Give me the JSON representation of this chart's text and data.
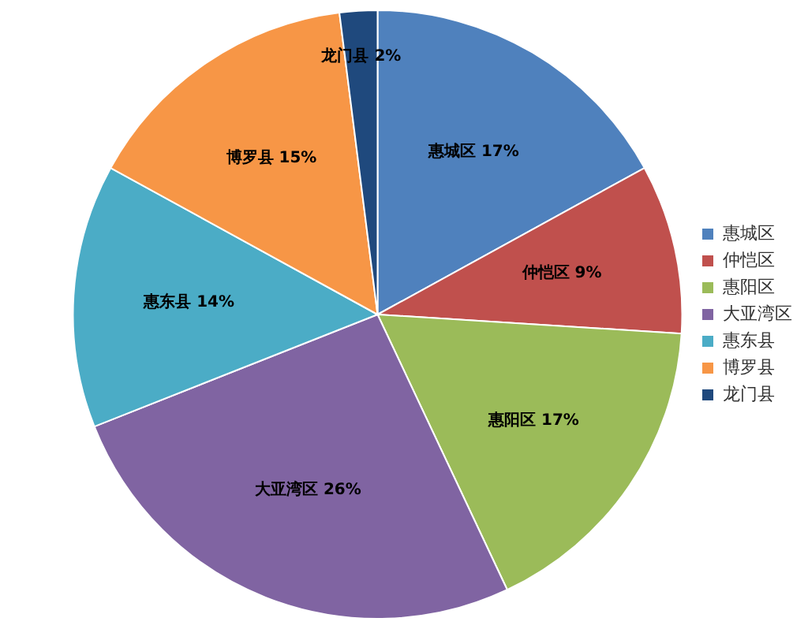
{
  "chart_data": {
    "type": "pie",
    "categories": [
      "惠城区",
      "仲恺区",
      "惠阳区",
      "大亚湾区",
      "惠东县",
      "博罗县",
      "龙门县"
    ],
    "values": [
      17,
      9,
      17,
      26,
      14,
      15,
      2
    ],
    "value_labels": [
      "17%",
      "9%",
      "17%",
      "26%",
      "14%",
      "15%",
      "2%"
    ],
    "colors": [
      "#4f81bd",
      "#c0504d",
      "#9bbb59",
      "#8064a2",
      "#4bacc6",
      "#f79646",
      "#1f497d"
    ],
    "legend": "right"
  }
}
